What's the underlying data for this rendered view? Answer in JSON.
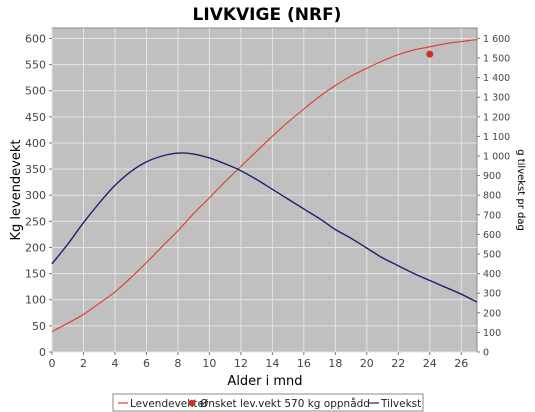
{
  "chart_data": {
    "type": "line",
    "title": "LIVKVIGE (NRF)",
    "xlabel": "Alder i mnd",
    "ylabel": "Kg levendevekt",
    "y2label": "g tilvekst pr dag",
    "xlim": [
      0,
      27
    ],
    "ylim": [
      0,
      620
    ],
    "y2lim": [
      0,
      1653
    ],
    "x_ticks": [
      "0",
      "2",
      "4",
      "6",
      "8",
      "10",
      "12",
      "14",
      "16",
      "18",
      "20",
      "22",
      "24",
      "26"
    ],
    "y_ticks": [
      "0",
      "50",
      "100",
      "150",
      "200",
      "250",
      "300",
      "350",
      "400",
      "450",
      "500",
      "550",
      "600"
    ],
    "y2_ticks": [
      "0",
      "100",
      "200",
      "300",
      "400",
      "500",
      "600",
      "700",
      "800",
      "900",
      "1 000",
      "1 100",
      "1 200",
      "1 300",
      "1 400",
      "1 500",
      "1 600"
    ],
    "grid": true,
    "legend_position": "bottom",
    "series": [
      {
        "name": "Levendevekter",
        "color": "#dd3b2a",
        "axis": "left",
        "x": [
          0,
          1,
          2,
          3,
          4,
          5,
          6,
          7,
          8,
          9,
          10,
          11,
          12,
          13,
          14,
          15,
          16,
          17,
          18,
          19,
          20,
          21,
          22,
          23,
          24,
          25,
          26,
          27
        ],
        "y": [
          39,
          55,
          72,
          93,
          115,
          142,
          171,
          202,
          232,
          265,
          295,
          326,
          355,
          384,
          413,
          440,
          465,
          489,
          510,
          528,
          543,
          557,
          569,
          578,
          584,
          590,
          594,
          598
        ]
      },
      {
        "name": "Tilvekst",
        "color": "#202070",
        "axis": "right",
        "x": [
          0,
          1,
          2,
          3,
          4,
          5,
          6,
          7,
          8,
          9,
          10,
          11,
          12,
          13,
          14,
          15,
          16,
          17,
          18,
          19,
          20,
          21,
          22,
          23,
          24,
          25,
          26,
          27
        ],
        "y": [
          450,
          550,
          660,
          760,
          850,
          920,
          970,
          1000,
          1015,
          1010,
          990,
          960,
          925,
          880,
          830,
          780,
          730,
          680,
          625,
          580,
          530,
          480,
          440,
          400,
          365,
          330,
          295,
          255
        ]
      }
    ],
    "points": [
      {
        "name": "Ønsket lev.vekt 570 kg oppnådd",
        "color": "#cc3322",
        "x": 24,
        "y": 570
      }
    ]
  }
}
